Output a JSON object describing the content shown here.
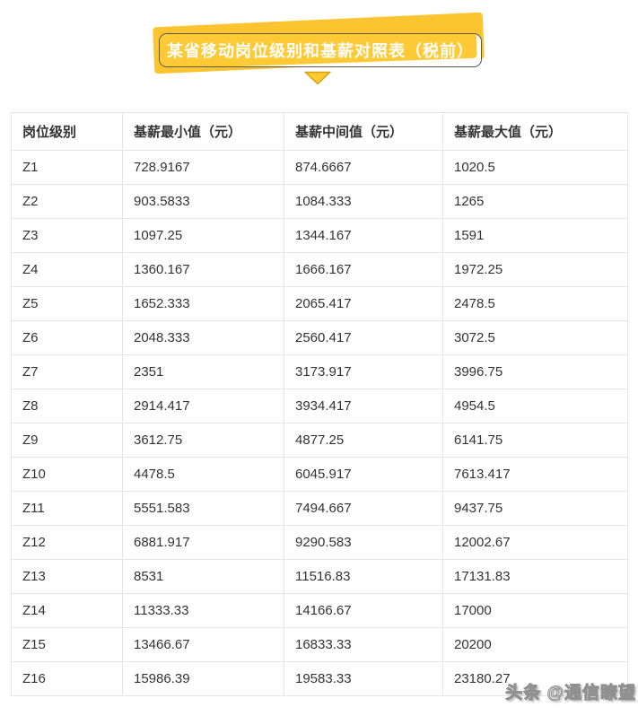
{
  "banner": {
    "title": "某省移动岗位级别和基薪对照表（税前）"
  },
  "chart_data": {
    "type": "table",
    "title": "某省移动岗位级别和基薪对照表（税前）",
    "columns": [
      "岗位级别",
      "基薪最小值（元）",
      "基薪中间值（元）",
      "基薪最大值（元）"
    ],
    "rows": [
      [
        "Z1",
        "728.9167",
        "874.6667",
        "1020.5"
      ],
      [
        "Z2",
        "903.5833",
        "1084.333",
        "1265"
      ],
      [
        "Z3",
        "1097.25",
        "1344.167",
        "1591"
      ],
      [
        "Z4",
        "1360.167",
        "1666.167",
        "1972.25"
      ],
      [
        "Z5",
        "1652.333",
        "2065.417",
        "2478.5"
      ],
      [
        "Z6",
        "2048.333",
        "2560.417",
        "3072.5"
      ],
      [
        "Z7",
        "2351",
        "3173.917",
        "3996.75"
      ],
      [
        "Z8",
        "2914.417",
        "3934.417",
        "4954.5"
      ],
      [
        "Z9",
        "3612.75",
        "4877.25",
        "6141.75"
      ],
      [
        "Z10",
        "4478.5",
        "6045.917",
        "7613.417"
      ],
      [
        "Z11",
        "5551.583",
        "7494.667",
        "9437.75"
      ],
      [
        "Z12",
        "6881.917",
        "9290.583",
        "12002.67"
      ],
      [
        "Z13",
        "8531",
        "11516.83",
        "17131.83"
      ],
      [
        "Z14",
        "11333.33",
        "14166.67",
        "17000"
      ],
      [
        "Z15",
        "13466.67",
        "16833.33",
        "20200"
      ],
      [
        "Z16",
        "15986.39",
        "19583.33",
        "23180.27"
      ]
    ]
  },
  "watermark": {
    "text": "头条 @通信瞭望"
  },
  "colors": {
    "banner_yellow": "#fcc52f",
    "banner_fill_yellow": "#fdca35",
    "banner_border": "#5b564b",
    "banner_text": "#ffffff",
    "table_border": "#e5e5e5",
    "text_dark": "#333333"
  }
}
